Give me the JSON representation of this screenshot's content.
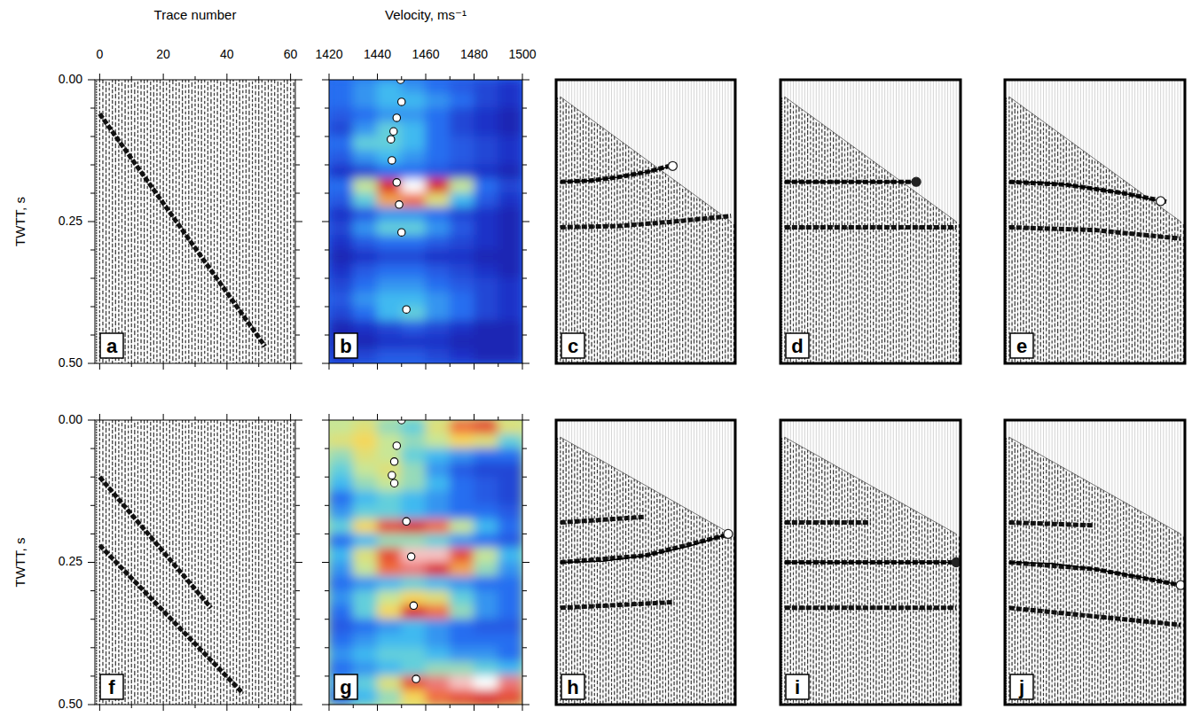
{
  "chart_data": [
    {
      "label": "a",
      "type": "shot_gather",
      "xlabel": "Trace number",
      "ylabel": "TWTT, s",
      "xlim": [
        -1.5,
        61.5
      ],
      "ylim": [
        0,
        0.5
      ],
      "xticks": [
        0,
        20,
        40,
        60
      ],
      "xminor": [
        10,
        30,
        50
      ],
      "yticks": [
        {
          "value": 0,
          "label": "0.00"
        },
        {
          "value": 0.25,
          "label": "0.25"
        },
        {
          "value": 0.5,
          "label": "0.50"
        }
      ],
      "yminor": [
        0.05,
        0.1,
        0.15,
        0.2,
        0.3,
        0.35,
        0.4,
        0.45
      ],
      "tick_labels": true,
      "events": [
        {
          "trace": [
            0,
            52
          ],
          "time": [
            0.06,
            0.47
          ]
        }
      ]
    },
    {
      "label": "b",
      "type": "heatmap",
      "xlabel": "Velocity, ms⁻¹",
      "xlim": [
        1420,
        1500
      ],
      "ylim": [
        0,
        0.5
      ],
      "xticks": [
        1420,
        1440,
        1460,
        1480,
        1500
      ],
      "xminor": [
        1430,
        1450,
        1470,
        1490
      ],
      "yticks": [
        0,
        0.25,
        0.5
      ],
      "yminor": [
        0.05,
        0.1,
        0.15,
        0.2,
        0.3,
        0.35,
        0.4,
        0.45
      ],
      "tick_labels": "x",
      "x_edges": [
        1420,
        1430,
        1440,
        1450,
        1460,
        1470,
        1480,
        1490,
        1500
      ],
      "y_edges": [
        0,
        0.025,
        0.05,
        0.075,
        0.1,
        0.125,
        0.15,
        0.175,
        0.2,
        0.225,
        0.25,
        0.275,
        0.3,
        0.325,
        0.35,
        0.375,
        0.4,
        0.425,
        0.45,
        0.475,
        0.5
      ],
      "color_range": [
        0,
        1
      ],
      "cells": [
        [
          0.3,
          0.35,
          0.4,
          0.35,
          0.3,
          0.25,
          0.2,
          0.15
        ],
        [
          0.3,
          0.35,
          0.4,
          0.4,
          0.35,
          0.3,
          0.2,
          0.15
        ],
        [
          0.25,
          0.3,
          0.35,
          0.35,
          0.3,
          0.2,
          0.15,
          0.1
        ],
        [
          0.2,
          0.35,
          0.45,
          0.4,
          0.3,
          0.2,
          0.15,
          0.1
        ],
        [
          0.3,
          0.45,
          0.45,
          0.4,
          0.3,
          0.25,
          0.2,
          0.15
        ],
        [
          0.25,
          0.35,
          0.4,
          0.35,
          0.3,
          0.25,
          0.2,
          0.15
        ],
        [
          0.15,
          0.2,
          0.3,
          0.3,
          0.25,
          0.2,
          0.15,
          0.1
        ],
        [
          0.3,
          0.55,
          0.85,
          1.0,
          0.85,
          0.55,
          0.3,
          0.2
        ],
        [
          0.25,
          0.45,
          0.7,
          0.75,
          0.6,
          0.4,
          0.25,
          0.15
        ],
        [
          0.15,
          0.25,
          0.35,
          0.35,
          0.3,
          0.2,
          0.15,
          0.1
        ],
        [
          0.2,
          0.35,
          0.45,
          0.45,
          0.35,
          0.25,
          0.15,
          0.1
        ],
        [
          0.15,
          0.25,
          0.3,
          0.3,
          0.25,
          0.2,
          0.15,
          0.1
        ],
        [
          0.1,
          0.15,
          0.2,
          0.2,
          0.15,
          0.15,
          0.1,
          0.1
        ],
        [
          0.15,
          0.25,
          0.3,
          0.3,
          0.25,
          0.2,
          0.15,
          0.1
        ],
        [
          0.2,
          0.3,
          0.35,
          0.35,
          0.3,
          0.25,
          0.2,
          0.15
        ],
        [
          0.25,
          0.35,
          0.4,
          0.4,
          0.35,
          0.3,
          0.2,
          0.15
        ],
        [
          0.2,
          0.3,
          0.4,
          0.45,
          0.35,
          0.3,
          0.2,
          0.15
        ],
        [
          0.1,
          0.15,
          0.2,
          0.25,
          0.2,
          0.15,
          0.1,
          0.1
        ],
        [
          0.1,
          0.1,
          0.15,
          0.15,
          0.15,
          0.1,
          0.1,
          0.1
        ],
        [
          0.15,
          0.2,
          0.25,
          0.25,
          0.2,
          0.15,
          0.1,
          0.1
        ]
      ],
      "picks": {
        "velocity": [
          1449.6,
          1450,
          1448,
          1446.7,
          1445.6,
          1446,
          1448,
          1449,
          1450,
          1452
        ],
        "time": [
          0,
          0.039,
          0.067,
          0.091,
          0.105,
          0.142,
          0.181,
          0.22,
          0.269,
          0.405
        ]
      },
      "marker": "open-circle"
    },
    {
      "label": "c",
      "type": "nmo_gather",
      "xlim": [
        -1.5,
        61.5
      ],
      "ylim": [
        0,
        0.5
      ],
      "tick_labels": false,
      "mute": {
        "trace": [
          0,
          60
        ],
        "time": [
          0.03,
          0.25
        ]
      },
      "events": [
        {
          "trace": [
            0,
            10,
            20,
            30,
            40
          ],
          "time": [
            0.18,
            0.178,
            0.172,
            0.163,
            0.15
          ]
        },
        {
          "trace": [
            0,
            20,
            40,
            60
          ],
          "time": [
            0.26,
            0.258,
            0.25,
            0.24
          ]
        }
      ],
      "curve": {
        "trace": [
          0,
          10,
          20,
          30,
          39.5
        ],
        "time": [
          0.18,
          0.178,
          0.172,
          0.163,
          0.152
        ],
        "marker": "open-circle"
      }
    },
    {
      "label": "d",
      "type": "nmo_gather",
      "xlim": [
        -1.5,
        61.5
      ],
      "ylim": [
        0,
        0.5
      ],
      "tick_labels": false,
      "mute": {
        "trace": [
          0,
          60
        ],
        "time": [
          0.03,
          0.25
        ]
      },
      "events": [
        {
          "trace": [
            0,
            45
          ],
          "time": [
            0.18,
            0.18
          ]
        },
        {
          "trace": [
            0,
            60
          ],
          "time": [
            0.26,
            0.26
          ]
        }
      ],
      "curve": {
        "trace": [
          0,
          46
        ],
        "time": [
          0.18,
          0.18
        ],
        "marker": "filled-circle"
      }
    },
    {
      "label": "e",
      "type": "nmo_gather",
      "xlim": [
        -1.5,
        61.5
      ],
      "ylim": [
        0,
        0.5
      ],
      "tick_labels": false,
      "mute": {
        "trace": [
          0,
          60
        ],
        "time": [
          0.03,
          0.25
        ]
      },
      "events": [
        {
          "trace": [
            0,
            20,
            40,
            55
          ],
          "time": [
            0.18,
            0.185,
            0.2,
            0.215
          ]
        },
        {
          "trace": [
            0,
            30,
            60
          ],
          "time": [
            0.26,
            0.265,
            0.28
          ]
        }
      ],
      "curve": {
        "trace": [
          0,
          10,
          20,
          30,
          40,
          53
        ],
        "time": [
          0.18,
          0.181,
          0.185,
          0.192,
          0.2,
          0.214
        ],
        "marker": "open-circle"
      }
    },
    {
      "label": "f",
      "type": "shot_gather",
      "ylabel": "TWTT, s",
      "xlim": [
        -1.5,
        61.5
      ],
      "ylim": [
        0,
        0.5
      ],
      "xticks": [
        0,
        20,
        40,
        60
      ],
      "xminor": [
        10,
        30,
        50
      ],
      "yticks": [
        {
          "value": 0,
          "label": "0.00"
        },
        {
          "value": 0.25,
          "label": "0.25"
        },
        {
          "value": 0.5,
          "label": "0.50"
        }
      ],
      "yminor": [
        0.05,
        0.1,
        0.15,
        0.2,
        0.3,
        0.35,
        0.4,
        0.45
      ],
      "tick_labels": "y",
      "events": [
        {
          "trace": [
            0,
            35
          ],
          "time": [
            0.1,
            0.33
          ]
        },
        {
          "trace": [
            0,
            45
          ],
          "time": [
            0.22,
            0.48
          ]
        }
      ]
    },
    {
      "label": "g",
      "type": "heatmap",
      "xlim": [
        1420,
        1500
      ],
      "ylim": [
        0,
        0.5
      ],
      "xticks": [
        1420,
        1440,
        1460,
        1480,
        1500
      ],
      "xminor": [
        1430,
        1450,
        1470,
        1490
      ],
      "yticks": [
        0,
        0.25,
        0.5
      ],
      "yminor": [
        0.05,
        0.1,
        0.15,
        0.2,
        0.3,
        0.35,
        0.4,
        0.45
      ],
      "tick_labels": false,
      "x_edges": [
        1420,
        1430,
        1440,
        1450,
        1460,
        1470,
        1480,
        1490,
        1500
      ],
      "y_edges": [
        0,
        0.025,
        0.05,
        0.075,
        0.1,
        0.125,
        0.15,
        0.175,
        0.2,
        0.225,
        0.25,
        0.275,
        0.3,
        0.325,
        0.35,
        0.375,
        0.4,
        0.425,
        0.45,
        0.475,
        0.5
      ],
      "color_range": [
        0,
        1
      ],
      "cells": [
        [
          0.55,
          0.6,
          0.5,
          0.45,
          0.6,
          0.75,
          0.8,
          0.6
        ],
        [
          0.6,
          0.65,
          0.55,
          0.5,
          0.55,
          0.65,
          0.6,
          0.45
        ],
        [
          0.5,
          0.6,
          0.55,
          0.45,
          0.4,
          0.35,
          0.3,
          0.3
        ],
        [
          0.45,
          0.55,
          0.6,
          0.5,
          0.35,
          0.25,
          0.2,
          0.2
        ],
        [
          0.4,
          0.5,
          0.55,
          0.5,
          0.4,
          0.3,
          0.25,
          0.2
        ],
        [
          0.3,
          0.4,
          0.45,
          0.4,
          0.35,
          0.3,
          0.25,
          0.2
        ],
        [
          0.35,
          0.45,
          0.45,
          0.4,
          0.35,
          0.3,
          0.3,
          0.25
        ],
        [
          0.45,
          0.65,
          0.8,
          0.85,
          0.75,
          0.55,
          0.4,
          0.3
        ],
        [
          0.3,
          0.4,
          0.5,
          0.5,
          0.45,
          0.35,
          0.3,
          0.25
        ],
        [
          0.4,
          0.6,
          0.8,
          0.95,
          0.95,
          0.8,
          0.55,
          0.4
        ],
        [
          0.35,
          0.55,
          0.75,
          0.9,
          0.85,
          0.7,
          0.5,
          0.35
        ],
        [
          0.3,
          0.35,
          0.4,
          0.45,
          0.4,
          0.35,
          0.3,
          0.3
        ],
        [
          0.35,
          0.45,
          0.55,
          0.65,
          0.6,
          0.45,
          0.35,
          0.3
        ],
        [
          0.3,
          0.45,
          0.65,
          0.85,
          0.75,
          0.5,
          0.35,
          0.3
        ],
        [
          0.25,
          0.3,
          0.35,
          0.4,
          0.35,
          0.3,
          0.25,
          0.25
        ],
        [
          0.3,
          0.35,
          0.4,
          0.4,
          0.35,
          0.3,
          0.3,
          0.3
        ],
        [
          0.35,
          0.4,
          0.45,
          0.45,
          0.4,
          0.35,
          0.35,
          0.3
        ],
        [
          0.3,
          0.35,
          0.4,
          0.45,
          0.5,
          0.5,
          0.45,
          0.4
        ],
        [
          0.35,
          0.45,
          0.6,
          0.8,
          0.9,
          0.95,
          1.0,
          0.9
        ],
        [
          0.3,
          0.4,
          0.5,
          0.65,
          0.75,
          0.8,
          0.85,
          0.8
        ]
      ],
      "picks": {
        "velocity": [
          1450,
          1448,
          1447,
          1446,
          1447,
          1452,
          1454,
          1455,
          1456
        ],
        "time": [
          0,
          0.045,
          0.073,
          0.097,
          0.111,
          0.178,
          0.24,
          0.326,
          0.455
        ]
      },
      "marker": "open-circle"
    },
    {
      "label": "h",
      "type": "nmo_gather",
      "xlim": [
        -1.5,
        61.5
      ],
      "ylim": [
        0,
        0.5
      ],
      "tick_labels": false,
      "mute": {
        "trace": [
          0,
          60
        ],
        "time": [
          0.03,
          0.2
        ]
      },
      "events": [
        {
          "trace": [
            0,
            30
          ],
          "time": [
            0.18,
            0.17
          ]
        },
        {
          "trace": [
            0,
            30,
            60
          ],
          "time": [
            0.25,
            0.238,
            0.2
          ]
        },
        {
          "trace": [
            0,
            40
          ],
          "time": [
            0.33,
            0.32
          ]
        }
      ],
      "curve": {
        "trace": [
          0,
          15,
          30,
          45,
          59
        ],
        "time": [
          0.25,
          0.248,
          0.238,
          0.222,
          0.2
        ],
        "marker": "open-circle"
      }
    },
    {
      "label": "i",
      "type": "nmo_gather",
      "xlim": [
        -1.5,
        61.5
      ],
      "ylim": [
        0,
        0.5
      ],
      "tick_labels": false,
      "mute": {
        "trace": [
          0,
          60
        ],
        "time": [
          0.03,
          0.2
        ]
      },
      "events": [
        {
          "trace": [
            0,
            30
          ],
          "time": [
            0.18,
            0.18
          ]
        },
        {
          "trace": [
            0,
            60
          ],
          "time": [
            0.25,
            0.25
          ]
        },
        {
          "trace": [
            0,
            60
          ],
          "time": [
            0.33,
            0.33
          ]
        }
      ],
      "curve": {
        "trace": [
          0,
          60
        ],
        "time": [
          0.25,
          0.25
        ],
        "marker": "filled-circle"
      }
    },
    {
      "label": "j",
      "type": "nmo_gather",
      "xlim": [
        -1.5,
        61.5
      ],
      "ylim": [
        0,
        0.5
      ],
      "tick_labels": false,
      "mute": {
        "trace": [
          0,
          60
        ],
        "time": [
          0.03,
          0.2
        ]
      },
      "events": [
        {
          "trace": [
            0,
            30
          ],
          "time": [
            0.18,
            0.185
          ]
        },
        {
          "trace": [
            0,
            30,
            60
          ],
          "time": [
            0.25,
            0.262,
            0.29
          ]
        },
        {
          "trace": [
            0,
            60
          ],
          "time": [
            0.33,
            0.36
          ]
        }
      ],
      "curve": {
        "trace": [
          0,
          15,
          30,
          45,
          60
        ],
        "time": [
          0.25,
          0.252,
          0.262,
          0.275,
          0.29
        ],
        "marker": "open-circle"
      }
    }
  ]
}
